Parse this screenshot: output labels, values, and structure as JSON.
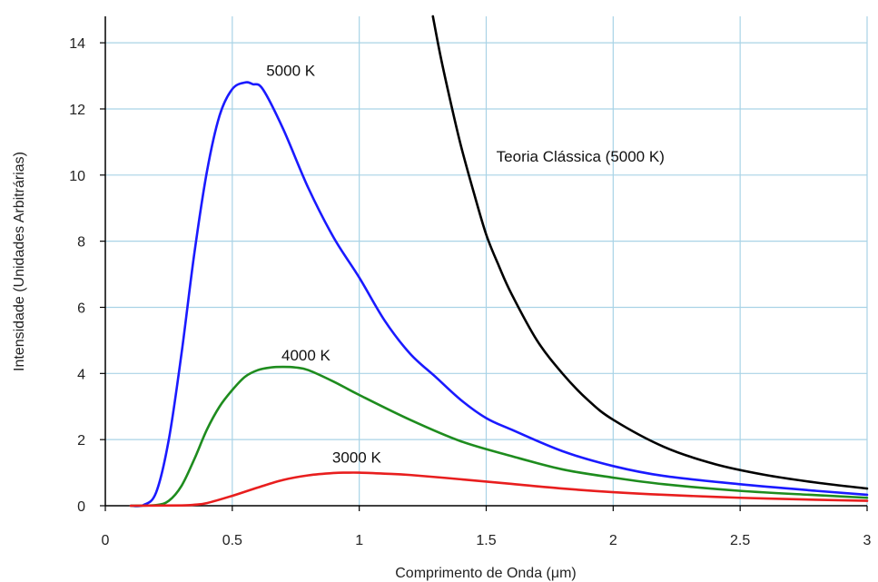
{
  "chart_data": {
    "type": "line",
    "xlabel": "Comprimento de Onda (μm)",
    "ylabel": "Intensidade (Unidades Arbitrárias)",
    "xlim": [
      0,
      3
    ],
    "ylim": [
      0,
      14.8
    ],
    "xticks": [
      0,
      0.5,
      1,
      1.5,
      2,
      2.5,
      3
    ],
    "xtick_labels": [
      "0",
      "0.5",
      "1",
      "1.5",
      "2",
      "2.5",
      "3"
    ],
    "yticks": [
      0,
      2,
      4,
      6,
      8,
      10,
      12,
      14
    ],
    "ytick_labels": [
      "0",
      "2",
      "4",
      "6",
      "8",
      "10",
      "12",
      "14"
    ],
    "grid": true,
    "series": [
      {
        "name": "5000 K",
        "color": "#1a1aff",
        "x": [
          0.1,
          0.15,
          0.2,
          0.25,
          0.3,
          0.35,
          0.4,
          0.45,
          0.5,
          0.55,
          0.58,
          0.62,
          0.7,
          0.8,
          0.9,
          1.0,
          1.1,
          1.2,
          1.3,
          1.4,
          1.5,
          1.6,
          1.8,
          2.0,
          2.2,
          2.5,
          2.8,
          3.0
        ],
        "y": [
          0,
          0.02,
          0.4,
          2.0,
          4.6,
          7.6,
          10.1,
          11.8,
          12.6,
          12.8,
          12.75,
          12.6,
          11.4,
          9.6,
          8.1,
          6.9,
          5.6,
          4.6,
          3.9,
          3.2,
          2.65,
          2.3,
          1.65,
          1.2,
          0.9,
          0.65,
          0.45,
          0.33
        ]
      },
      {
        "name": "4000 K",
        "color": "#1e8c1e",
        "x": [
          0.1,
          0.2,
          0.25,
          0.3,
          0.35,
          0.4,
          0.45,
          0.5,
          0.55,
          0.6,
          0.65,
          0.7,
          0.75,
          0.8,
          0.9,
          1.0,
          1.2,
          1.4,
          1.6,
          1.8,
          2.0,
          2.2,
          2.5,
          2.8,
          3.0
        ],
        "y": [
          0,
          0.02,
          0.15,
          0.6,
          1.4,
          2.3,
          3.0,
          3.5,
          3.9,
          4.1,
          4.18,
          4.2,
          4.18,
          4.1,
          3.75,
          3.35,
          2.6,
          1.95,
          1.5,
          1.1,
          0.85,
          0.65,
          0.45,
          0.32,
          0.24
        ]
      },
      {
        "name": "3000 K",
        "color": "#e81e1e",
        "x": [
          0.1,
          0.3,
          0.35,
          0.4,
          0.5,
          0.6,
          0.7,
          0.8,
          0.9,
          0.95,
          1.0,
          1.1,
          1.2,
          1.4,
          1.6,
          1.8,
          2.0,
          2.2,
          2.5,
          2.8,
          3.0
        ],
        "y": [
          0,
          0.01,
          0.03,
          0.08,
          0.3,
          0.55,
          0.78,
          0.92,
          0.99,
          1.0,
          1.0,
          0.97,
          0.93,
          0.8,
          0.66,
          0.52,
          0.41,
          0.33,
          0.24,
          0.18,
          0.15
        ]
      },
      {
        "name": "Teoria Clássica (5000 K)",
        "color": "#000000",
        "x": [
          1.29,
          1.32,
          1.36,
          1.4,
          1.45,
          1.5,
          1.55,
          1.6,
          1.7,
          1.8,
          1.9,
          2.0,
          2.2,
          2.4,
          2.6,
          2.8,
          3.0
        ],
        "y": [
          14.8,
          13.6,
          12.2,
          10.9,
          9.5,
          8.2,
          7.25,
          6.4,
          5.0,
          4.0,
          3.2,
          2.6,
          1.78,
          1.26,
          0.93,
          0.7,
          0.52
        ]
      }
    ],
    "annotations": [
      {
        "text": "5000 K",
        "x": 0.73,
        "y": 13.0,
        "anchor": "middle"
      },
      {
        "text": "4000 K",
        "x": 0.79,
        "y": 4.4,
        "anchor": "middle"
      },
      {
        "text": "3000 K",
        "x": 0.99,
        "y": 1.3,
        "anchor": "middle"
      },
      {
        "text": "Teoria Clássica (5000 K)",
        "x": 1.54,
        "y": 10.4,
        "anchor": "start"
      }
    ]
  }
}
